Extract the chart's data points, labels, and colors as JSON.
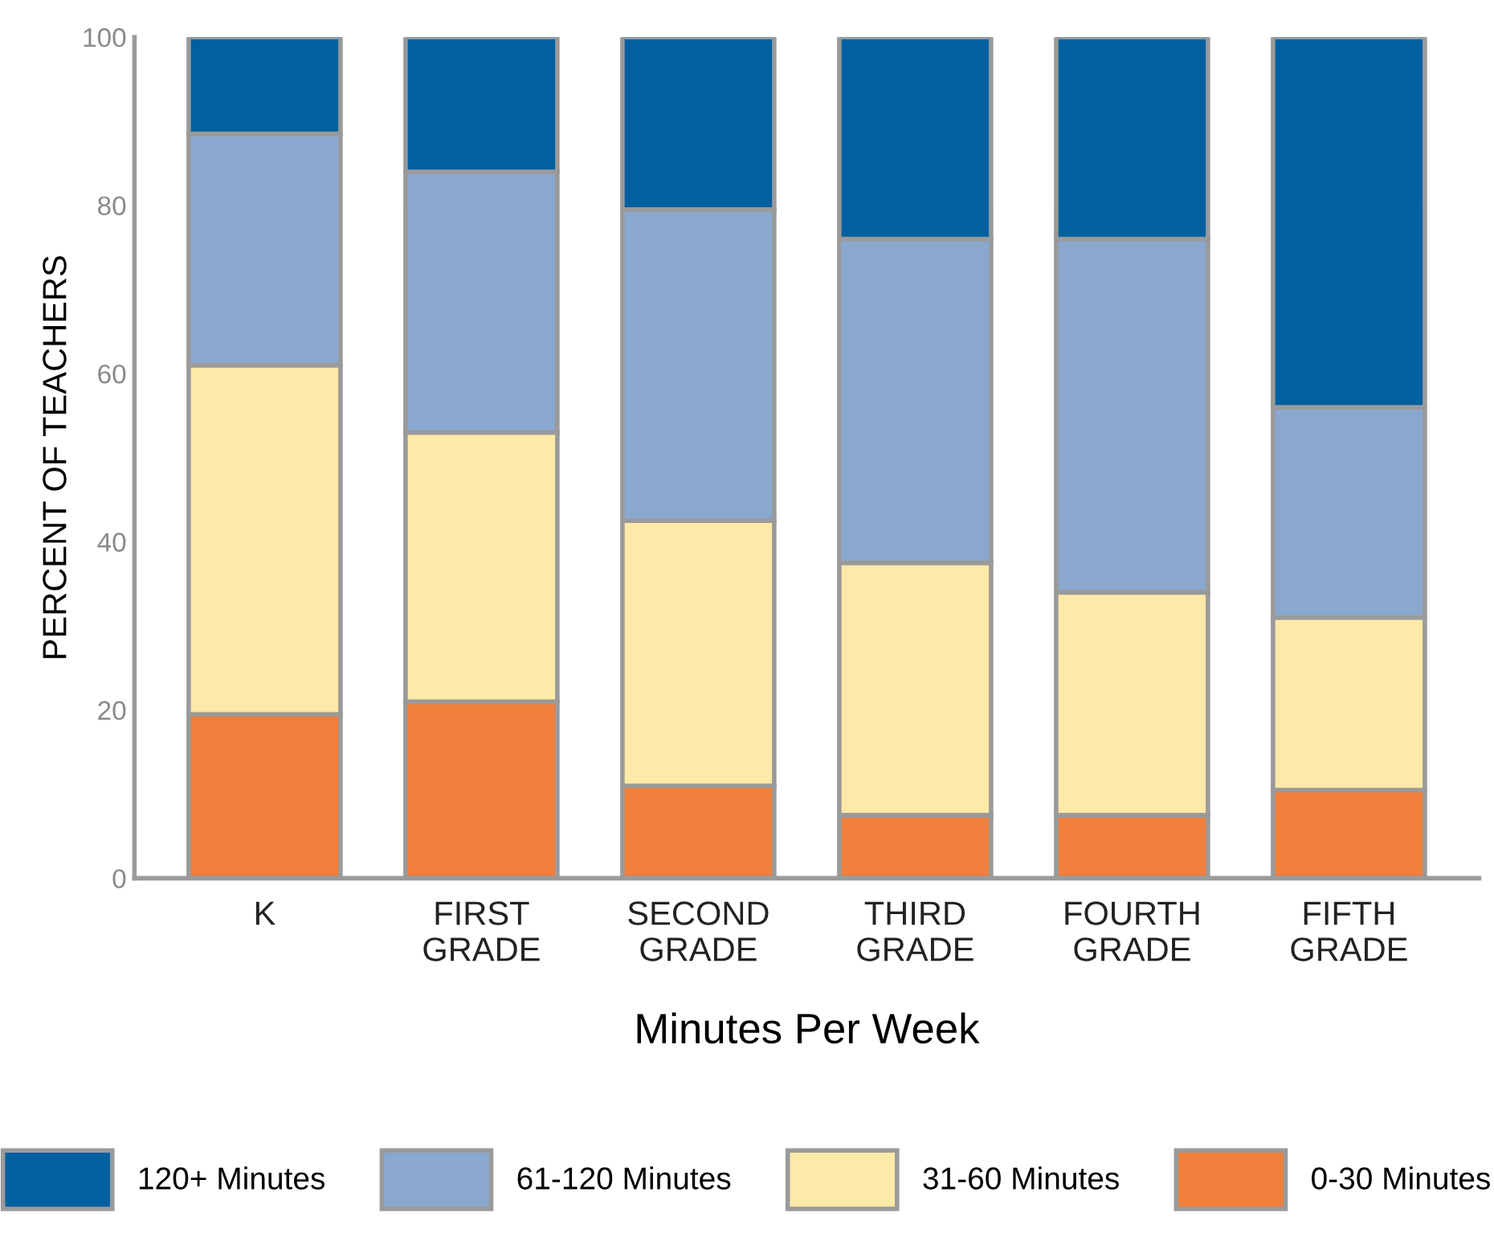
{
  "chart_data": {
    "type": "bar",
    "stacked": true,
    "xlabel": "Minutes Per Week",
    "ylabel": "PERCENT OF TEACHERS",
    "categories": [
      "K",
      "FIRST\nGRADE",
      "SECOND\nGRADE",
      "THIRD\nGRADE",
      "FOURTH\nGRADE",
      "FIFTH\nGRADE"
    ],
    "series": [
      {
        "name": "0-30 Minutes",
        "color": "#f07f3c",
        "values": [
          19.5,
          21,
          11,
          7.5,
          7.5,
          10.5
        ]
      },
      {
        "name": "31-60 Minutes",
        "color": "#fde9a8",
        "values": [
          41.5,
          32,
          31.5,
          30,
          26.5,
          20.5
        ]
      },
      {
        "name": "61-120 Minutes",
        "color": "#8aa8cf",
        "values": [
          27.5,
          31,
          37,
          38.5,
          42,
          25
        ]
      },
      {
        "name": "120+ Minutes",
        "color": "#0060a0",
        "values": [
          11.5,
          16,
          20.5,
          24,
          24,
          44
        ]
      }
    ],
    "ylim": [
      0,
      100
    ],
    "yticks": [
      0,
      20,
      40,
      60,
      80,
      100
    ],
    "grid": false,
    "legend": "bottom"
  }
}
